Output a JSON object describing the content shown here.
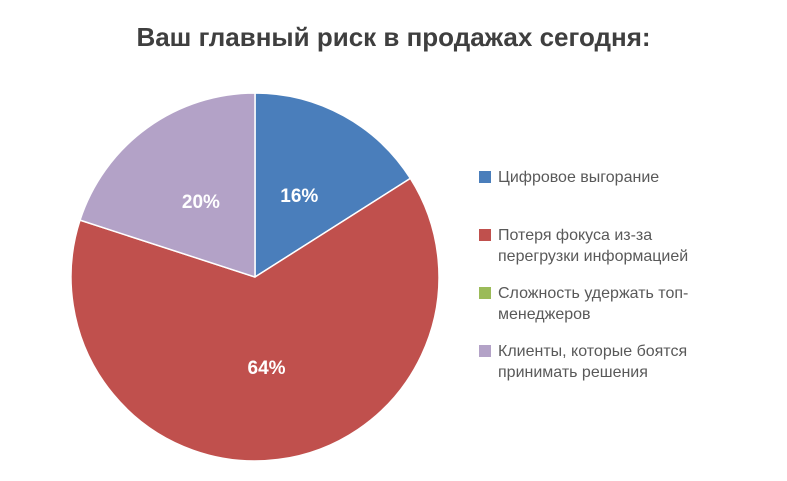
{
  "chart_data": {
    "type": "pie",
    "title": "Ваш главный риск в продажах сегодня:",
    "legend_position": "right",
    "background": "#ffffff",
    "title_color": "#3f3f3f",
    "legend_text_color": "#595959",
    "label_radius_ratio": 0.5,
    "categories": [
      "Цифровое выгорание",
      "Потеря фокуса из-за перегрузки информацией",
      "Сложность удержать топ-менеджеров",
      "Клиенты, которые боятся принимать решения"
    ],
    "values": [
      16,
      64,
      0,
      20
    ],
    "slices": [
      {
        "label": "Цифровое выгорание",
        "value": 16,
        "data_label": "16%",
        "color": "#4a7ebb"
      },
      {
        "label": "Потеря фокуса из-за\nперегрузки информацией",
        "value": 64,
        "data_label": "64%",
        "color": "#c0504d"
      },
      {
        "label": "Сложность удержать топ-\nменеджеров",
        "value": 0,
        "data_label": "",
        "color": "#9bbb59"
      },
      {
        "label": "Клиенты, которые боятся\nпринимать решения",
        "value": 20,
        "data_label": "20%",
        "color": "#b3a2c7"
      }
    ]
  }
}
